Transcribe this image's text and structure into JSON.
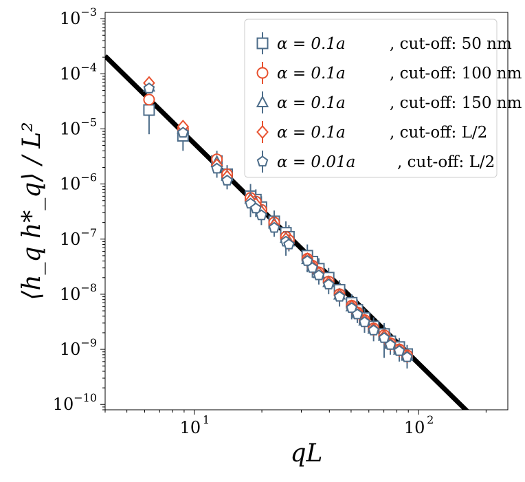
{
  "colors": {
    "blue": "#4d6d8a",
    "red": "#e8512f",
    "fit_line": "#000000",
    "errorbar": "#4d6d8a"
  },
  "chart_data": {
    "type": "scatter",
    "xscale": "log",
    "yscale": "log",
    "xlim": [
      4,
      250
    ],
    "ylim": [
      8e-11,
      0.0013
    ],
    "xlabel": "qL",
    "ylabel": "⟨h_q h*_q⟩ / L²",
    "x_ticks": [
      {
        "base": "10",
        "exp": "1",
        "value": 10
      },
      {
        "base": "10",
        "exp": "2",
        "value": 100
      }
    ],
    "y_ticks": [
      {
        "base": "10",
        "exp": "−3",
        "value": 0.001
      },
      {
        "base": "10",
        "exp": "−4",
        "value": 0.0001
      },
      {
        "base": "10",
        "exp": "−5",
        "value": 1e-05
      },
      {
        "base": "10",
        "exp": "−6",
        "value": 1e-06
      },
      {
        "base": "10",
        "exp": "−7",
        "value": 1e-07
      },
      {
        "base": "10",
        "exp": "−8",
        "value": 1e-08
      },
      {
        "base": "10",
        "exp": "−9",
        "value": 1e-09
      },
      {
        "base": "10",
        "exp": "−10",
        "value": 1e-10
      }
    ],
    "fit_line": {
      "x": [
        4,
        165
      ],
      "y": [
        0.00021,
        7.5e-11
      ]
    },
    "legend": {
      "location": "upper right"
    },
    "series": [
      {
        "name": "α = 0.1a , cut-off: 50 nm",
        "alpha": "α = 0.1a",
        "cutoff": "cut-off: 50 nm",
        "marker": "square",
        "color": "#4d6d8a",
        "points": [
          {
            "x": 6.28,
            "y": 2.2e-05,
            "ylo": 8e-06,
            "yhi": 3.5e-05
          },
          {
            "x": 8.9,
            "y": 7.5e-06,
            "ylo": 4e-06,
            "yhi": 1.2e-05
          },
          {
            "x": 12.6,
            "y": 2.6e-06,
            "ylo": 1.3e-06,
            "yhi": 4e-06
          },
          {
            "x": 14.0,
            "y": 1.5e-06,
            "ylo": 8e-07,
            "yhi": 2.2e-06
          },
          {
            "x": 17.8,
            "y": 6e-07,
            "ylo": 2.5e-07,
            "yhi": 1e-06
          },
          {
            "x": 18.8,
            "y": 5.2e-07,
            "ylo": 2.5e-07,
            "yhi": 8e-07
          },
          {
            "x": 19.9,
            "y": 3.8e-07,
            "ylo": 1.8e-07,
            "yhi": 6e-07
          },
          {
            "x": 22.7,
            "y": 2.1e-07,
            "ylo": 1.1e-07,
            "yhi": 3.3e-07
          },
          {
            "x": 25.6,
            "y": 1.3e-07,
            "ylo": 5e-08,
            "yhi": 2.1e-07
          },
          {
            "x": 26.4,
            "y": 1.1e-07,
            "ylo": 6e-08,
            "yhi": 1.8e-07
          },
          {
            "x": 31.9,
            "y": 5e-08,
            "ylo": 2.5e-08,
            "yhi": 8e-08
          },
          {
            "x": 33.6,
            "y": 3.9e-08,
            "ylo": 2e-08,
            "yhi": 6e-08
          },
          {
            "x": 35.9,
            "y": 2.9e-08,
            "ylo": 1.5e-08,
            "yhi": 4.5e-08
          },
          {
            "x": 39.7,
            "y": 2e-08,
            "ylo": 1e-08,
            "yhi": 3e-08
          },
          {
            "x": 44.4,
            "y": 1.2e-08,
            "ylo": 6e-09,
            "yhi": 1.8e-08
          },
          {
            "x": 50.3,
            "y": 7e-09,
            "ylo": 3.5e-09,
            "yhi": 1e-08
          },
          {
            "x": 53.3,
            "y": 5.2e-09,
            "ylo": 3e-09,
            "yhi": 8e-09
          },
          {
            "x": 57.4,
            "y": 3.7e-09,
            "ylo": 2e-09,
            "yhi": 5.5e-09
          },
          {
            "x": 63.0,
            "y": 2.6e-09,
            "ylo": 1.4e-09,
            "yhi": 3.8e-09
          },
          {
            "x": 70.2,
            "y": 1.9e-09,
            "ylo": 7e-10,
            "yhi": 3e-09
          },
          {
            "x": 74.8,
            "y": 1.4e-09,
            "ylo": 8e-10,
            "yhi": 2e-09
          },
          {
            "x": 82.0,
            "y": 1.1e-09,
            "ylo": 6e-10,
            "yhi": 1.6e-09
          },
          {
            "x": 88.9,
            "y": 8.2e-10,
            "ylo": 4.5e-10,
            "yhi": 1.2e-09
          }
        ]
      },
      {
        "name": "α = 0.1a , cut-off: 100 nm",
        "alpha": "α = 0.1a",
        "cutoff": "cut-off: 100 nm",
        "marker": "circle",
        "color": "#e8512f",
        "points": [
          {
            "x": 6.28,
            "y": 3.4e-05
          },
          {
            "x": 8.9,
            "y": 1e-05
          },
          {
            "x": 12.6,
            "y": 2.8e-06
          },
          {
            "x": 14.0,
            "y": 1.5e-06
          },
          {
            "x": 17.8,
            "y": 5.6e-07
          },
          {
            "x": 18.8,
            "y": 4.8e-07
          },
          {
            "x": 19.9,
            "y": 3.4e-07
          },
          {
            "x": 22.7,
            "y": 2e-07
          },
          {
            "x": 25.6,
            "y": 1.1e-07
          },
          {
            "x": 26.4,
            "y": 9.5e-08
          },
          {
            "x": 31.9,
            "y": 4.4e-08
          },
          {
            "x": 33.6,
            "y": 3.3e-08
          },
          {
            "x": 35.9,
            "y": 2.5e-08
          },
          {
            "x": 39.7,
            "y": 1.7e-08
          },
          {
            "x": 44.4,
            "y": 1e-08
          },
          {
            "x": 50.3,
            "y": 6.2e-09
          },
          {
            "x": 53.3,
            "y": 4.7e-09
          },
          {
            "x": 57.4,
            "y": 3.4e-09
          },
          {
            "x": 63.0,
            "y": 2.4e-09
          },
          {
            "x": 70.2,
            "y": 1.8e-09
          },
          {
            "x": 74.8,
            "y": 1.3e-09
          },
          {
            "x": 82.0,
            "y": 1e-09
          },
          {
            "x": 88.9,
            "y": 7.8e-10
          }
        ]
      },
      {
        "name": "α = 0.1a , cut-off: 150 nm",
        "alpha": "α = 0.1a",
        "cutoff": "cut-off: 150 nm",
        "marker": "triangle",
        "color": "#4d6d8a",
        "points": [
          {
            "x": 6.28,
            "y": 5.8e-05
          },
          {
            "x": 8.9,
            "y": 1e-05
          },
          {
            "x": 12.6,
            "y": 2.5e-06
          },
          {
            "x": 14.0,
            "y": 1.4e-06
          },
          {
            "x": 17.8,
            "y": 5.4e-07
          },
          {
            "x": 18.8,
            "y": 4.6e-07
          },
          {
            "x": 19.9,
            "y": 3.3e-07
          },
          {
            "x": 22.7,
            "y": 1.9e-07
          },
          {
            "x": 25.6,
            "y": 1.05e-07
          },
          {
            "x": 26.4,
            "y": 9e-08
          },
          {
            "x": 31.9,
            "y": 4.3e-08
          },
          {
            "x": 33.6,
            "y": 3.2e-08
          },
          {
            "x": 35.9,
            "y": 2.4e-08
          },
          {
            "x": 39.7,
            "y": 1.65e-08
          },
          {
            "x": 44.4,
            "y": 9.8e-09
          },
          {
            "x": 50.3,
            "y": 6e-09
          },
          {
            "x": 53.3,
            "y": 4.6e-09
          },
          {
            "x": 57.4,
            "y": 3.3e-09
          },
          {
            "x": 63.0,
            "y": 2.35e-09
          },
          {
            "x": 70.2,
            "y": 1.75e-09
          },
          {
            "x": 74.8,
            "y": 1.25e-09
          },
          {
            "x": 82.0,
            "y": 9.8e-10
          },
          {
            "x": 88.9,
            "y": 7.6e-10
          }
        ]
      },
      {
        "name": "α = 0.1a , cut-off: L/2",
        "alpha": "α = 0.1a",
        "cutoff": "cut-off: L/2",
        "marker": "diamond",
        "color": "#e8512f",
        "points": [
          {
            "x": 6.28,
            "y": 6.8e-05
          },
          {
            "x": 8.9,
            "y": 1.1e-05
          },
          {
            "x": 12.6,
            "y": 2.2e-06
          },
          {
            "x": 14.0,
            "y": 1.35e-06
          },
          {
            "x": 17.8,
            "y": 5e-07
          },
          {
            "x": 18.8,
            "y": 4.3e-07
          },
          {
            "x": 19.9,
            "y": 3.1e-07
          },
          {
            "x": 22.7,
            "y": 1.75e-07
          },
          {
            "x": 25.6,
            "y": 1e-07
          },
          {
            "x": 26.4,
            "y": 8.4e-08
          },
          {
            "x": 31.9,
            "y": 4.3e-08
          },
          {
            "x": 33.6,
            "y": 3.2e-08
          },
          {
            "x": 35.9,
            "y": 2.4e-08
          },
          {
            "x": 39.7,
            "y": 1.6e-08
          },
          {
            "x": 44.4,
            "y": 9.6e-09
          },
          {
            "x": 50.3,
            "y": 6e-09
          },
          {
            "x": 53.3,
            "y": 4.6e-09
          },
          {
            "x": 57.4,
            "y": 3.3e-09
          },
          {
            "x": 63.0,
            "y": 2.3e-09
          },
          {
            "x": 70.2,
            "y": 1.7e-09
          },
          {
            "x": 74.8,
            "y": 1.25e-09
          },
          {
            "x": 82.0,
            "y": 9.7e-10
          },
          {
            "x": 88.9,
            "y": 7.5e-10
          }
        ]
      },
      {
        "name": "α = 0.01a , cut-off: L/2",
        "alpha": "α = 0.01a",
        "cutoff": "cut-off: L/2",
        "marker": "pentagon",
        "color": "#4d6d8a",
        "points": [
          {
            "x": 6.28,
            "y": 5.4e-05
          },
          {
            "x": 8.9,
            "y": 8.5e-06
          },
          {
            "x": 12.6,
            "y": 1.9e-06
          },
          {
            "x": 14.0,
            "y": 1.15e-06
          },
          {
            "x": 17.8,
            "y": 4.4e-07
          },
          {
            "x": 18.8,
            "y": 3.6e-07
          },
          {
            "x": 19.9,
            "y": 2.7e-07
          },
          {
            "x": 22.7,
            "y": 1.6e-07
          },
          {
            "x": 25.6,
            "y": 9e-08
          },
          {
            "x": 26.4,
            "y": 8e-08
          },
          {
            "x": 31.9,
            "y": 4e-08
          },
          {
            "x": 33.6,
            "y": 3e-08
          },
          {
            "x": 35.9,
            "y": 2.2e-08
          },
          {
            "x": 39.7,
            "y": 1.5e-08
          },
          {
            "x": 44.4,
            "y": 9e-09
          },
          {
            "x": 50.3,
            "y": 5.6e-09
          },
          {
            "x": 53.3,
            "y": 4.3e-09
          },
          {
            "x": 57.4,
            "y": 3.1e-09
          },
          {
            "x": 63.0,
            "y": 2.2e-09
          },
          {
            "x": 70.2,
            "y": 1.6e-09
          },
          {
            "x": 74.8,
            "y": 1.2e-09
          },
          {
            "x": 82.0,
            "y": 9.3e-10
          },
          {
            "x": 88.9,
            "y": 7.2e-10
          }
        ]
      }
    ]
  }
}
